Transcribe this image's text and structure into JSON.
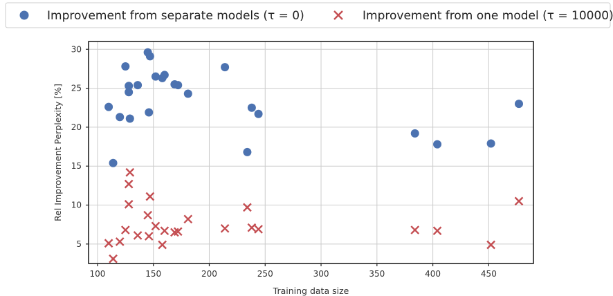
{
  "chart_data": {
    "type": "scatter",
    "title": "",
    "xlabel": "Training data size",
    "ylabel": "Rel Improvement Perplexity [%]",
    "xlim": [
      92,
      490
    ],
    "ylim": [
      2.5,
      31
    ],
    "xticks": [
      100,
      150,
      200,
      250,
      300,
      350,
      400,
      450
    ],
    "yticks": [
      5,
      10,
      15,
      20,
      25,
      30
    ],
    "grid": true,
    "legend_position": "top",
    "series": [
      {
        "name": "Improvement from separate models (τ = 0)",
        "marker": "circle",
        "color": "#4c72b0",
        "points": [
          [
            110,
            22.6
          ],
          [
            114,
            15.4
          ],
          [
            120,
            21.3
          ],
          [
            125,
            27.8
          ],
          [
            128,
            25.3
          ],
          [
            128,
            24.5
          ],
          [
            129,
            21.1
          ],
          [
            136,
            25.4
          ],
          [
            145,
            29.6
          ],
          [
            146,
            21.9
          ],
          [
            147,
            29.1
          ],
          [
            152,
            26.5
          ],
          [
            158,
            26.3
          ],
          [
            160,
            26.7
          ],
          [
            169,
            25.5
          ],
          [
            172,
            25.4
          ],
          [
            181,
            24.3
          ],
          [
            214,
            27.7
          ],
          [
            234,
            16.8
          ],
          [
            238,
            22.5
          ],
          [
            244,
            21.7
          ],
          [
            384,
            19.2
          ],
          [
            404,
            17.8
          ],
          [
            452,
            17.9
          ],
          [
            477,
            23.0
          ]
        ]
      },
      {
        "name": "Improvement from one model (τ = 10000)",
        "marker": "x",
        "color": "#c44e52",
        "points": [
          [
            110,
            5.1
          ],
          [
            114,
            3.1
          ],
          [
            120,
            5.3
          ],
          [
            125,
            6.8
          ],
          [
            128,
            10.1
          ],
          [
            128,
            12.7
          ],
          [
            129,
            14.2
          ],
          [
            136,
            6.1
          ],
          [
            145,
            8.7
          ],
          [
            146,
            6.0
          ],
          [
            147,
            11.1
          ],
          [
            152,
            7.3
          ],
          [
            158,
            4.9
          ],
          [
            160,
            6.7
          ],
          [
            169,
            6.5
          ],
          [
            172,
            6.6
          ],
          [
            181,
            8.2
          ],
          [
            214,
            7.0
          ],
          [
            234,
            9.7
          ],
          [
            238,
            7.1
          ],
          [
            244,
            6.9
          ],
          [
            384,
            6.8
          ],
          [
            404,
            6.7
          ],
          [
            452,
            4.9
          ],
          [
            477,
            10.5
          ]
        ]
      }
    ]
  }
}
